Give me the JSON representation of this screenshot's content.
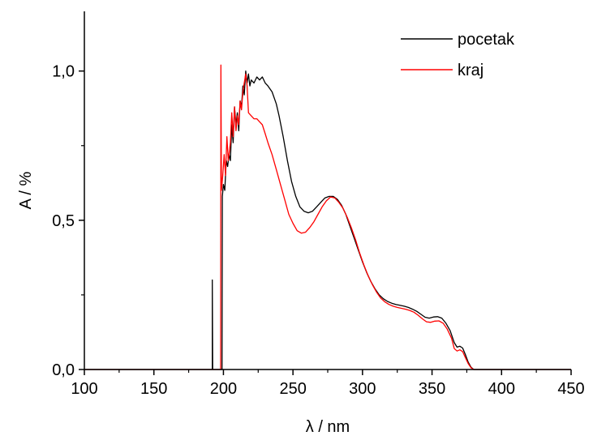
{
  "chart_data": {
    "type": "line",
    "xlabel": "λ / nm",
    "ylabel": "A / %",
    "xlim": [
      100,
      450
    ],
    "ylim": [
      0,
      1.2
    ],
    "x_ticks": [
      100,
      150,
      200,
      250,
      300,
      350,
      400,
      450
    ],
    "x_tick_labels": [
      "100",
      "150",
      "200",
      "250",
      "300",
      "350",
      "400",
      "450"
    ],
    "y_ticks": [
      0,
      0.5,
      1.0
    ],
    "y_tick_labels": [
      "0,0",
      "0,5",
      "1,0"
    ],
    "grid": false,
    "legend_position": "top-right",
    "series": [
      {
        "name": "pocetak",
        "color": "#000000",
        "points": [
          [
            100,
            0
          ],
          [
            192,
            0
          ],
          [
            192,
            0.3
          ],
          [
            192.3,
            0
          ],
          [
            199,
            0
          ],
          [
            199.2,
            0.58
          ],
          [
            200,
            0.62
          ],
          [
            201,
            0.6
          ],
          [
            202,
            0.7
          ],
          [
            203,
            0.68
          ],
          [
            204,
            0.72
          ],
          [
            205,
            0.7
          ],
          [
            206,
            0.82
          ],
          [
            207,
            0.76
          ],
          [
            208,
            0.88
          ],
          [
            209,
            0.82
          ],
          [
            210,
            0.86
          ],
          [
            211,
            0.8
          ],
          [
            212,
            0.9
          ],
          [
            213,
            0.88
          ],
          [
            214,
            0.95
          ],
          [
            215,
            0.92
          ],
          [
            216,
            1.0
          ],
          [
            217,
            0.96
          ],
          [
            218,
            0.99
          ],
          [
            219,
            0.95
          ],
          [
            220,
            0.97
          ],
          [
            222,
            0.96
          ],
          [
            224,
            0.98
          ],
          [
            226,
            0.97
          ],
          [
            228,
            0.98
          ],
          [
            230,
            0.96
          ],
          [
            232,
            0.95
          ],
          [
            235,
            0.93
          ],
          [
            238,
            0.89
          ],
          [
            240,
            0.85
          ],
          [
            243,
            0.78
          ],
          [
            246,
            0.7
          ],
          [
            249,
            0.63
          ],
          [
            252,
            0.58
          ],
          [
            255,
            0.545
          ],
          [
            258,
            0.53
          ],
          [
            261,
            0.525
          ],
          [
            264,
            0.53
          ],
          [
            267,
            0.545
          ],
          [
            270,
            0.56
          ],
          [
            273,
            0.575
          ],
          [
            276,
            0.58
          ],
          [
            279,
            0.58
          ],
          [
            282,
            0.57
          ],
          [
            285,
            0.55
          ],
          [
            288,
            0.52
          ],
          [
            291,
            0.48
          ],
          [
            294,
            0.44
          ],
          [
            297,
            0.4
          ],
          [
            300,
            0.36
          ],
          [
            303,
            0.325
          ],
          [
            306,
            0.295
          ],
          [
            309,
            0.27
          ],
          [
            312,
            0.25
          ],
          [
            315,
            0.237
          ],
          [
            318,
            0.228
          ],
          [
            321,
            0.222
          ],
          [
            324,
            0.218
          ],
          [
            327,
            0.215
          ],
          [
            330,
            0.212
          ],
          [
            333,
            0.208
          ],
          [
            336,
            0.202
          ],
          [
            339,
            0.195
          ],
          [
            342,
            0.185
          ],
          [
            345,
            0.175
          ],
          [
            348,
            0.172
          ],
          [
            351,
            0.176
          ],
          [
            354,
            0.177
          ],
          [
            357,
            0.172
          ],
          [
            360,
            0.155
          ],
          [
            363,
            0.13
          ],
          [
            366,
            0.09
          ],
          [
            368,
            0.075
          ],
          [
            370,
            0.078
          ],
          [
            372,
            0.072
          ],
          [
            374,
            0.05
          ],
          [
            376,
            0.025
          ],
          [
            378,
            0.008
          ],
          [
            380,
            0
          ],
          [
            450,
            0
          ]
        ]
      },
      {
        "name": "kraj",
        "color": "#ff0000",
        "points": [
          [
            100,
            0
          ],
          [
            198,
            0
          ],
          [
            198.2,
            1.02
          ],
          [
            198.6,
            0.6
          ],
          [
            199.5,
            0.65
          ],
          [
            200.5,
            0.72
          ],
          [
            201.5,
            0.65
          ],
          [
            202.5,
            0.78
          ],
          [
            203.5,
            0.7
          ],
          [
            205,
            0.76
          ],
          [
            206,
            0.86
          ],
          [
            207,
            0.78
          ],
          [
            208,
            0.88
          ],
          [
            209,
            0.8
          ],
          [
            210,
            0.85
          ],
          [
            211,
            0.82
          ],
          [
            212,
            0.9
          ],
          [
            213,
            0.87
          ],
          [
            214,
            0.93
          ],
          [
            215,
            0.96
          ],
          [
            216,
            0.99
          ],
          [
            217,
            0.95
          ],
          [
            218,
            0.86
          ],
          [
            220,
            0.85
          ],
          [
            222,
            0.84
          ],
          [
            224,
            0.84
          ],
          [
            226,
            0.83
          ],
          [
            228,
            0.82
          ],
          [
            230,
            0.79
          ],
          [
            232,
            0.76
          ],
          [
            235,
            0.72
          ],
          [
            238,
            0.67
          ],
          [
            241,
            0.62
          ],
          [
            244,
            0.57
          ],
          [
            247,
            0.52
          ],
          [
            250,
            0.49
          ],
          [
            253,
            0.465
          ],
          [
            256,
            0.457
          ],
          [
            259,
            0.46
          ],
          [
            262,
            0.475
          ],
          [
            265,
            0.495
          ],
          [
            268,
            0.52
          ],
          [
            271,
            0.545
          ],
          [
            274,
            0.565
          ],
          [
            277,
            0.578
          ],
          [
            280,
            0.575
          ],
          [
            283,
            0.56
          ],
          [
            286,
            0.54
          ],
          [
            289,
            0.51
          ],
          [
            292,
            0.475
          ],
          [
            295,
            0.435
          ],
          [
            298,
            0.39
          ],
          [
            301,
            0.35
          ],
          [
            304,
            0.315
          ],
          [
            307,
            0.285
          ],
          [
            310,
            0.26
          ],
          [
            313,
            0.24
          ],
          [
            316,
            0.227
          ],
          [
            319,
            0.218
          ],
          [
            322,
            0.212
          ],
          [
            325,
            0.208
          ],
          [
            328,
            0.205
          ],
          [
            331,
            0.202
          ],
          [
            334,
            0.198
          ],
          [
            337,
            0.192
          ],
          [
            340,
            0.182
          ],
          [
            343,
            0.17
          ],
          [
            346,
            0.16
          ],
          [
            349,
            0.158
          ],
          [
            352,
            0.162
          ],
          [
            355,
            0.163
          ],
          [
            358,
            0.155
          ],
          [
            361,
            0.135
          ],
          [
            364,
            0.105
          ],
          [
            366,
            0.07
          ],
          [
            368,
            0.062
          ],
          [
            370,
            0.066
          ],
          [
            372,
            0.06
          ],
          [
            374,
            0.04
          ],
          [
            376,
            0.02
          ],
          [
            378,
            0.006
          ],
          [
            380,
            0
          ],
          [
            450,
            0
          ]
        ]
      }
    ]
  }
}
